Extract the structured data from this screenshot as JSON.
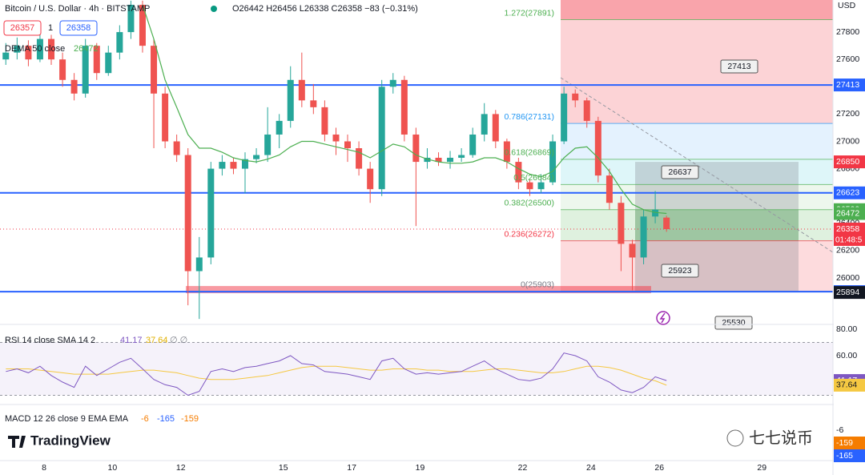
{
  "header": {
    "symbol": "Bitcoin / U.S. Dollar · 4h · BITSTAMP",
    "ohlc": "O26442 H26456 L26338 C26358 −83 (−0.31%)",
    "bid": "26357",
    "qty": "1",
    "ask": "26358",
    "indicator": "DEMA 50 close",
    "indicator_value": "26472"
  },
  "chart_data": {
    "type": "candlestick",
    "up_color": "#26a69a",
    "down_color": "#ef5350",
    "dema_color": "#4caf50",
    "xlim": [
      6.71,
      31.08
    ],
    "ylim": [
      25660,
      28035
    ],
    "xticks": [
      8,
      10,
      12,
      15,
      17,
      19,
      22,
      24,
      26,
      29
    ],
    "yticks": [
      26000,
      26200,
      26400,
      26600,
      26800,
      27000,
      27200,
      27400,
      27600,
      27800
    ],
    "currency": "USD",
    "x": [
      6.88,
      7.21,
      7.54,
      7.88,
      8.21,
      8.54,
      8.88,
      9.21,
      9.54,
      9.88,
      10.21,
      10.54,
      10.88,
      11.21,
      11.54,
      11.88,
      12.21,
      12.54,
      12.88,
      13.21,
      13.54,
      13.88,
      14.21,
      14.54,
      14.88,
      15.21,
      15.54,
      15.88,
      16.21,
      16.54,
      16.88,
      17.21,
      17.54,
      17.88,
      18.21,
      18.54,
      18.88,
      19.21,
      19.54,
      19.88,
      20.21,
      20.54,
      20.88,
      21.21,
      21.54,
      21.88,
      22.21,
      22.54,
      22.88,
      23.21,
      23.54,
      23.88,
      24.21,
      24.54,
      24.88,
      25.21,
      25.54,
      25.88,
      26.21
    ],
    "candles": [
      [
        27600,
        27720,
        27560,
        27650
      ],
      [
        27650,
        27760,
        27600,
        27700
      ],
      [
        27700,
        27740,
        27550,
        27600
      ],
      [
        27600,
        27800,
        27580,
        27750
      ],
      [
        27750,
        27780,
        27560,
        27600
      ],
      [
        27600,
        27650,
        27400,
        27450
      ],
      [
        27450,
        27500,
        27300,
        27350
      ],
      [
        27350,
        27750,
        27320,
        27700
      ],
      [
        27700,
        27720,
        27450,
        27500
      ],
      [
        27500,
        27700,
        27480,
        27650
      ],
      [
        27650,
        27850,
        27600,
        27800
      ],
      [
        27800,
        28030,
        27750,
        28000
      ],
      [
        28000,
        28030,
        27650,
        27700
      ],
      [
        27700,
        27750,
        26950,
        27350
      ],
      [
        27350,
        27400,
        26950,
        27000
      ],
      [
        27000,
        27050,
        26850,
        26900
      ],
      [
        26900,
        26950,
        25800,
        26050
      ],
      [
        26050,
        26300,
        25700,
        26150
      ],
      [
        26150,
        26850,
        26100,
        26800
      ],
      [
        26800,
        26900,
        26750,
        26850
      ],
      [
        26850,
        26880,
        26760,
        26800
      ],
      [
        26800,
        26920,
        26620,
        26870
      ],
      [
        26870,
        26950,
        26840,
        26900
      ],
      [
        26900,
        27250,
        26850,
        27050
      ],
      [
        27050,
        27200,
        26950,
        27150
      ],
      [
        27150,
        27550,
        27100,
        27450
      ],
      [
        27450,
        27650,
        27250,
        27300
      ],
      [
        27300,
        27420,
        27200,
        27250
      ],
      [
        27250,
        27300,
        27000,
        27050
      ],
      [
        27050,
        27100,
        26900,
        27000
      ],
      [
        27000,
        27050,
        26850,
        26950
      ],
      [
        26950,
        27000,
        26750,
        26800
      ],
      [
        26800,
        26850,
        26550,
        26650
      ],
      [
        26650,
        27450,
        26600,
        27400
      ],
      [
        27400,
        27500,
        27350,
        27450
      ],
      [
        27450,
        27480,
        27000,
        27050
      ],
      [
        27050,
        27100,
        26380,
        26850
      ],
      [
        26850,
        26950,
        26800,
        26880
      ],
      [
        26880,
        26920,
        26820,
        26850
      ],
      [
        26850,
        26930,
        26800,
        26880
      ],
      [
        26880,
        26950,
        26850,
        26900
      ],
      [
        26900,
        27100,
        26880,
        27050
      ],
      [
        27050,
        27280,
        27000,
        27200
      ],
      [
        27200,
        27230,
        26950,
        27000
      ],
      [
        27000,
        27020,
        26800,
        26850
      ],
      [
        26850,
        26880,
        26650,
        26700
      ],
      [
        26700,
        26720,
        26600,
        26650
      ],
      [
        26650,
        26760,
        26620,
        26700
      ],
      [
        26700,
        27050,
        26680,
        27000
      ],
      [
        27000,
        27400,
        26980,
        27350
      ],
      [
        27350,
        27380,
        27250,
        27300
      ],
      [
        27300,
        27320,
        27100,
        27150
      ],
      [
        27150,
        27180,
        26700,
        26750
      ],
      [
        26750,
        26800,
        26500,
        26550
      ],
      [
        26550,
        26600,
        26050,
        26250
      ],
      [
        26250,
        26280,
        25910,
        26150
      ],
      [
        26150,
        26500,
        26100,
        26450
      ],
      [
        26450,
        26637,
        26400,
        26500
      ],
      [
        26442,
        26456,
        26338,
        26358
      ]
    ],
    "dema": [
      null,
      null,
      null,
      null,
      null,
      null,
      null,
      null,
      null,
      null,
      null,
      null,
      28000,
      27750,
      27450,
      27250,
      27050,
      26950,
      26950,
      26920,
      26880,
      26860,
      26850,
      26870,
      26900,
      26960,
      27000,
      27000,
      26980,
      26960,
      26940,
      26920,
      26880,
      26930,
      26980,
      26960,
      26900,
      26870,
      26850,
      26840,
      26840,
      26850,
      26880,
      26880,
      26850,
      26800,
      26760,
      26740,
      26780,
      26880,
      26950,
      26960,
      26880,
      26780,
      26650,
      26540,
      26500,
      26480,
      26472
    ],
    "hlines": [
      27413,
      26623,
      25900
    ],
    "hline_color": "#2962ff",
    "fib": [
      {
        "label": "1.272(27891)",
        "value": 27891,
        "color": "#4caf50",
        "fill": "rgba(242,54,69,0.22)"
      },
      {
        "label": "0.786(27131)",
        "value": 27131,
        "color": "#2196f3",
        "fill": "rgba(33,150,243,0.12)"
      },
      {
        "label": "0.618(26869)",
        "value": 26869,
        "color": "#4caf50",
        "fill": "rgba(0,188,212,0.13)"
      },
      {
        "label": "0.5(26684)",
        "value": 26684,
        "color": "#4caf50",
        "fill": "rgba(76,175,80,0.10)"
      },
      {
        "label": "0.382(26500)",
        "value": 26500,
        "color": "#4caf50",
        "fill": "rgba(76,175,80,0.18)"
      },
      {
        "label": "0.236(26272)",
        "value": 26272,
        "color": "#f23645",
        "fill": "rgba(242,54,69,0.18)"
      },
      {
        "label": "0(25903)",
        "value": 25903,
        "color": "#787b86",
        "fill": "rgba(0,0,0,0)"
      }
    ],
    "price_labels": [
      {
        "value": 27413,
        "color": "#2962ff"
      },
      {
        "value": 26850,
        "color": "#f23645"
      },
      {
        "value": 26623,
        "color": "#2962ff"
      },
      {
        "value": 26500,
        "color": "#4caf50"
      },
      {
        "value": 26472,
        "color": "#4caf50"
      },
      {
        "value": 26358,
        "color": "#f23645"
      },
      {
        "value": 25900,
        "color": "#2962ff"
      },
      {
        "value": 25894,
        "color": "#131722"
      }
    ],
    "countdown": "01:48:5",
    "callouts": [
      27413,
      26637,
      25923,
      25530
    ]
  },
  "rsi": {
    "label": "RSI 14 close SMA 14 2",
    "value": 41.17,
    "sma_value": 37.64,
    "extra": "∅ ∅",
    "color": "#7e57c2",
    "sma_color": "#f5c842",
    "yticks": [
      {
        "value": 80,
        "label": "80.00"
      },
      {
        "value": 60,
        "label": "60.00"
      }
    ],
    "values": [
      48,
      50,
      47,
      52,
      45,
      40,
      36,
      52,
      45,
      50,
      55,
      58,
      50,
      42,
      38,
      36,
      30,
      33,
      48,
      50,
      48,
      51,
      52,
      54,
      56,
      60,
      54,
      53,
      48,
      47,
      46,
      44,
      42,
      56,
      58,
      50,
      46,
      47,
      46,
      47,
      48,
      52,
      56,
      50,
      46,
      42,
      41,
      43,
      50,
      62,
      60,
      56,
      44,
      40,
      34,
      32,
      36,
      44,
      41.17
    ],
    "sma": [
      50,
      50,
      50,
      49,
      48,
      47,
      46,
      46,
      46,
      46,
      47,
      48,
      49,
      49,
      48,
      47,
      45,
      43,
      42,
      42,
      42,
      43,
      44,
      45,
      47,
      49,
      51,
      52,
      52,
      52,
      51,
      50,
      49,
      49,
      50,
      50,
      50,
      49,
      49,
      48,
      48,
      48,
      49,
      50,
      50,
      49,
      48,
      47,
      47,
      48,
      50,
      52,
      52,
      51,
      49,
      46,
      43,
      41,
      37.64
    ]
  },
  "macd": {
    "label": "MACD 12 26 close 9 EMA EMA",
    "hist": -6,
    "macd": -165,
    "signal": -159
  },
  "branding": {
    "logo": "TradingView",
    "watermark": "七七说币"
  }
}
